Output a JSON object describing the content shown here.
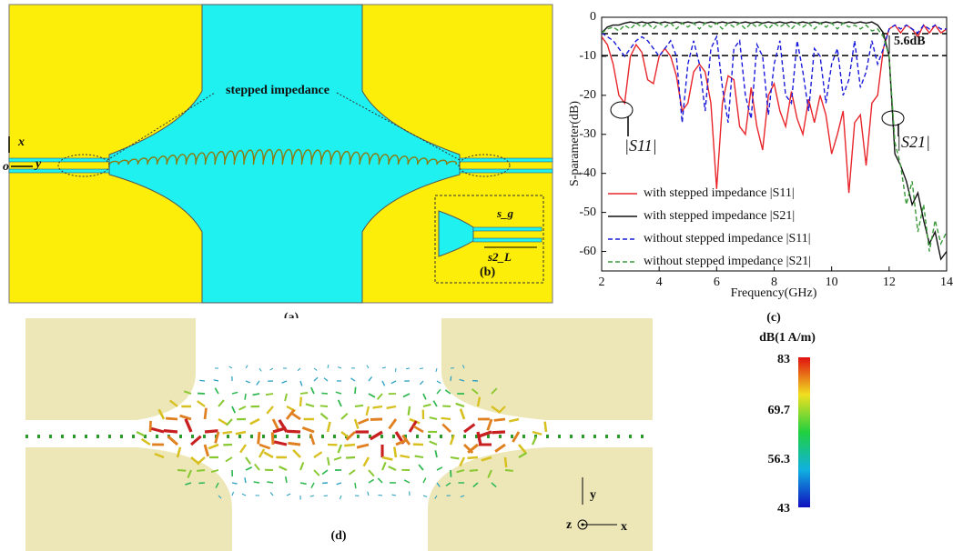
{
  "panel_a": {
    "label": "(a)",
    "annotation": "stepped impedance",
    "axis_x": "x",
    "axis_o": "o",
    "axis_y": "y"
  },
  "panel_b": {
    "label": "(b)",
    "gap_label": "s_g",
    "length_label": "s2_L"
  },
  "chart_data": {
    "type": "line",
    "label": "(c)",
    "xlabel": "Frequency(GHz)",
    "ylabel": "S-parameter(dB)",
    "xlim": [
      2,
      14
    ],
    "xticks": [
      2,
      4,
      6,
      8,
      10,
      12,
      14
    ],
    "ylim": [
      -65,
      0
    ],
    "yticks": [
      0,
      -10,
      -20,
      -30,
      -40,
      -50,
      -60
    ],
    "hlines": [
      -4.2,
      -9.8
    ],
    "annotations": [
      "5.6dB",
      "|S11|",
      "|S21|"
    ],
    "x": [
      2.0,
      2.2,
      2.4,
      2.6,
      2.8,
      3.0,
      3.2,
      3.4,
      3.6,
      3.8,
      4.0,
      4.2,
      4.4,
      4.6,
      4.8,
      5.0,
      5.2,
      5.4,
      5.6,
      5.8,
      6.0,
      6.2,
      6.4,
      6.6,
      6.8,
      7.0,
      7.2,
      7.4,
      7.6,
      7.8,
      8.0,
      8.2,
      8.4,
      8.6,
      8.8,
      9.0,
      9.2,
      9.4,
      9.6,
      9.8,
      10.0,
      10.2,
      10.4,
      10.6,
      10.8,
      11.0,
      11.2,
      11.4,
      11.6,
      11.8,
      12.0,
      12.2,
      12.4,
      12.6,
      12.8,
      13.0,
      13.2,
      13.4,
      13.6,
      13.8,
      14.0
    ],
    "series": [
      {
        "name": "with stepped impedance |S11|",
        "color": "#e8262b",
        "dash": false,
        "values": [
          -5,
          -7,
          -12,
          -20,
          -22,
          -10,
          -7,
          -9,
          -16,
          -17,
          -10,
          -8,
          -10,
          -15,
          -24,
          -22,
          -14,
          -12,
          -14,
          -22,
          -44,
          -22,
          -15,
          -16,
          -28,
          -30,
          -18,
          -28,
          -34,
          -20,
          -17,
          -24,
          -28,
          -19,
          -26,
          -30,
          -21,
          -27,
          -20,
          -25,
          -35,
          -30,
          -24,
          -45,
          -27,
          -25,
          -38,
          -22,
          -20,
          -8,
          -3,
          -2,
          -4,
          -2,
          -3,
          -5,
          -2,
          -4,
          -2,
          -4,
          -3
        ]
      },
      {
        "name": "with stepped impedance |S21|",
        "color": "#111111",
        "dash": false,
        "values": [
          -4,
          -2.5,
          -2,
          -2,
          -1.5,
          -1.2,
          -1.5,
          -1.2,
          -1.5,
          -1.2,
          -1.5,
          -1.2,
          -1.5,
          -1.2,
          -1.5,
          -1.2,
          -1.5,
          -1.2,
          -1.5,
          -1.2,
          -1.5,
          -1.2,
          -1.5,
          -1.2,
          -1.5,
          -1.2,
          -1.5,
          -1.2,
          -1.5,
          -1.2,
          -1.5,
          -1.2,
          -1.5,
          -1.2,
          -1.5,
          -1.2,
          -1.5,
          -1.2,
          -1.5,
          -1.2,
          -1.5,
          -1.2,
          -1.5,
          -1.2,
          -1.5,
          -1.2,
          -1.5,
          -1.2,
          -2,
          -4,
          -10,
          -35,
          -38,
          -42,
          -48,
          -45,
          -52,
          -58,
          -55,
          -62,
          -60
        ]
      },
      {
        "name": "without stepped impedance |S11|",
        "color": "#1a1adc",
        "dash": true,
        "values": [
          -4,
          -5,
          -6,
          -8,
          -10,
          -8,
          -6,
          -5,
          -6,
          -8,
          -10,
          -8,
          -6,
          -10,
          -27,
          -12,
          -6,
          -12,
          -24,
          -8,
          -5,
          -18,
          -27,
          -8,
          -6,
          -20,
          -26,
          -7,
          -10,
          -25,
          -12,
          -6,
          -20,
          -22,
          -6,
          -14,
          -24,
          -8,
          -10,
          -22,
          -12,
          -8,
          -20,
          -16,
          -6,
          -18,
          -14,
          -6,
          -12,
          -8,
          -3,
          -2,
          -3,
          -2,
          -3,
          -4,
          -2,
          -3,
          -2,
          -3,
          -3
        ]
      },
      {
        "name": "without stepped impedance |S21|",
        "color": "#3a9a3a",
        "dash": true,
        "values": [
          -4,
          -3,
          -2.5,
          -3.5,
          -2,
          -3,
          -1.5,
          -2.5,
          -1.5,
          -3,
          -1.5,
          -2.5,
          -1.5,
          -3,
          -1.5,
          -2.5,
          -1.5,
          -3,
          -1.5,
          -2.5,
          -1.5,
          -3,
          -1.5,
          -2.5,
          -1.5,
          -3,
          -1.5,
          -2.5,
          -1.5,
          -3,
          -1.5,
          -2.5,
          -1.5,
          -3,
          -1.5,
          -2.5,
          -1.5,
          -3,
          -1.5,
          -2.5,
          -1.5,
          -3,
          -1.5,
          -2.5,
          -2,
          -3,
          -2,
          -3.5,
          -3,
          -5,
          -10,
          -32,
          -38,
          -48,
          -42,
          -55,
          -48,
          -60,
          -52,
          -58,
          -55
        ]
      }
    ]
  },
  "panel_d": {
    "label": "(d)",
    "colorbar_title": "dB(1 A/m)",
    "colorbar_ticks": [
      "83",
      "69.7",
      "56.3",
      "43"
    ],
    "axis_y": "y",
    "axis_z": "z",
    "axis_x": "x"
  }
}
